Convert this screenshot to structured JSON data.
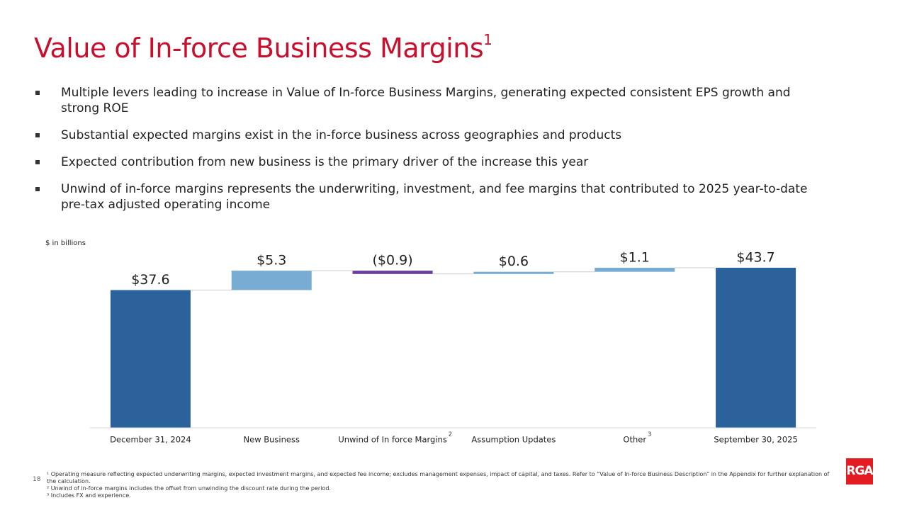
{
  "title": "Value of In-force Business Margins",
  "title_note": "1",
  "bullets": [
    "Multiple levers leading to increase in Value of In-force Business Margins, generating expected consistent EPS growth and strong ROE",
    "Substantial expected margins exist in the in-force business across geographies and products",
    "Expected contribution from new business is the primary driver of the increase this year",
    "Unwind of in-force margins represents the underwriting, investment, and fee margins that contributed to 2025 year-to-date pre-tax adjusted operating income"
  ],
  "chart_data": {
    "type": "waterfall",
    "unit_label": "$ in billions",
    "categories": [
      "December 31, 2024",
      "New Business",
      "Unwind of In force Margins",
      "Assumption Updates",
      "Other",
      "September 30, 2025"
    ],
    "category_notes": [
      null,
      null,
      "2",
      null,
      "3",
      null
    ],
    "values": [
      37.6,
      5.3,
      -0.9,
      0.6,
      1.1,
      43.7
    ],
    "value_labels": [
      "$37.6",
      "$5.3",
      "($0.9)",
      "$0.6",
      "$1.1",
      "$43.7"
    ],
    "color_total": "#2b629c",
    "color_increase": "#78acd3",
    "color_decrease": "#6a3d9e"
  },
  "footnotes": [
    "¹ Operating measure reflecting expected underwriting margins, expected investment margins, and expected fee income; excludes management expenses, impact of capital, and taxes. Refer to “Value of In-force Business Description” in the Appendix for further explanation of the calculation.",
    "² Unwind of in-force margins includes the offset from unwinding the discount rate during the period.",
    "³ Includes FX and experience."
  ],
  "page_number": "18",
  "logo": "RGA"
}
